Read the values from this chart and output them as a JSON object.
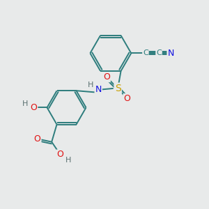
{
  "bg_color": "#e8eaea",
  "atom_colors": {
    "C": "#2d7d7d",
    "N": "#1010e0",
    "O": "#e01010",
    "S": "#c8a000",
    "H": "#5a7070",
    "bond": "#2d7d7d"
  },
  "bond_color": "#2d7d7d"
}
